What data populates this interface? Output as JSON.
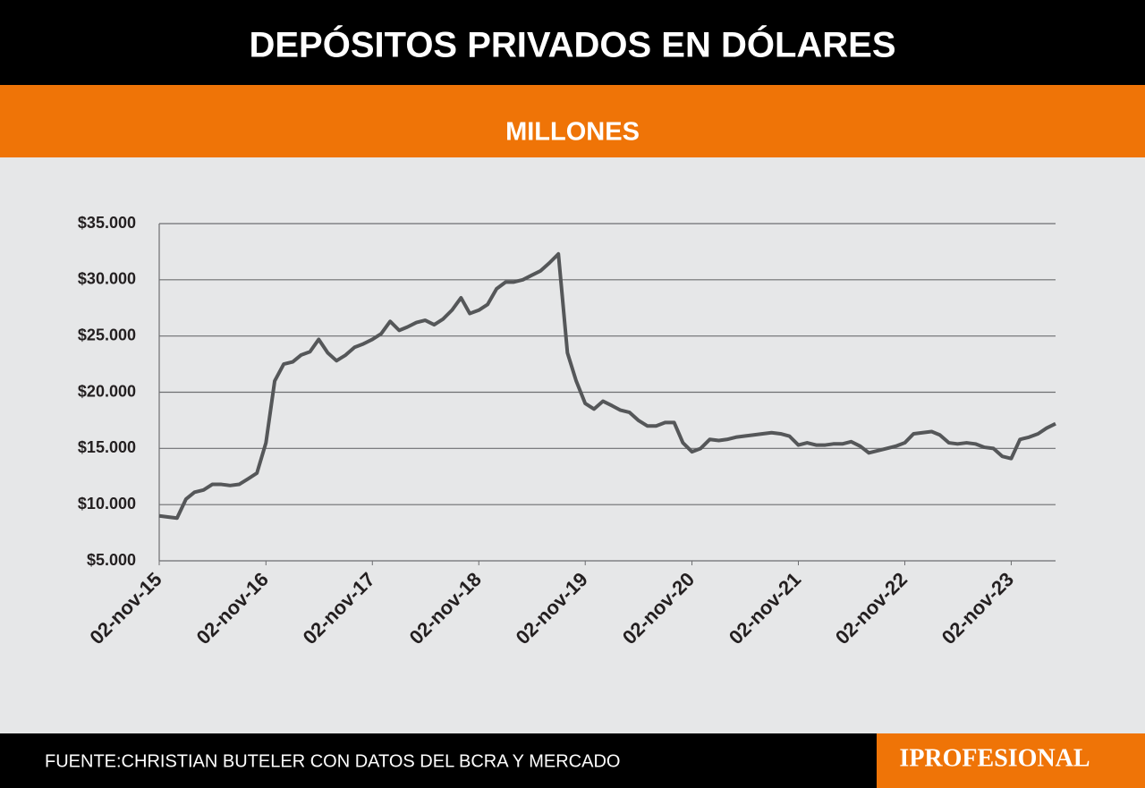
{
  "chart_data": {
    "type": "line",
    "title": "DEPÓSITOS PRIVADOS EN DÓLARES",
    "subtitle": "MILLONES",
    "source": "FUENTE:CHRISTIAN BUTELER CON DATOS DEL BCRA Y MERCADO",
    "brand": "IPROFESIONAL",
    "x": [
      "2015-11-02",
      "2015-12-02",
      "2016-01-02",
      "2016-02-02",
      "2016-03-02",
      "2016-04-02",
      "2016-05-02",
      "2016-06-02",
      "2016-07-02",
      "2016-08-02",
      "2016-09-02",
      "2016-10-02",
      "2016-11-02",
      "2016-12-02",
      "2017-01-02",
      "2017-02-02",
      "2017-03-02",
      "2017-04-02",
      "2017-05-02",
      "2017-06-02",
      "2017-07-02",
      "2017-08-02",
      "2017-09-02",
      "2017-10-02",
      "2017-11-02",
      "2017-12-02",
      "2018-01-02",
      "2018-02-02",
      "2018-03-02",
      "2018-04-02",
      "2018-05-02",
      "2018-06-02",
      "2018-07-02",
      "2018-08-02",
      "2018-09-02",
      "2018-10-02",
      "2018-11-02",
      "2018-12-02",
      "2019-01-02",
      "2019-02-02",
      "2019-03-02",
      "2019-04-02",
      "2019-05-02",
      "2019-06-02",
      "2019-07-02",
      "2019-08-02",
      "2019-09-02",
      "2019-10-02",
      "2019-11-02",
      "2019-12-02",
      "2020-01-02",
      "2020-02-02",
      "2020-03-02",
      "2020-04-02",
      "2020-05-02",
      "2020-06-02",
      "2020-07-02",
      "2020-08-02",
      "2020-09-02",
      "2020-10-02",
      "2020-11-02",
      "2020-12-02",
      "2021-01-02",
      "2021-02-02",
      "2021-03-02",
      "2021-04-02",
      "2021-05-02",
      "2021-06-02",
      "2021-07-02",
      "2021-08-02",
      "2021-09-02",
      "2021-10-02",
      "2021-11-02",
      "2021-12-02",
      "2022-01-02",
      "2022-02-02",
      "2022-03-02",
      "2022-04-02",
      "2022-05-02",
      "2022-06-02",
      "2022-07-02",
      "2022-08-02",
      "2022-09-02",
      "2022-10-02",
      "2022-11-02",
      "2022-12-02",
      "2023-01-02",
      "2023-02-02",
      "2023-03-02",
      "2023-04-02",
      "2023-05-02",
      "2023-06-02",
      "2023-07-02",
      "2023-08-02",
      "2023-09-02",
      "2023-10-02",
      "2023-11-02",
      "2023-12-02",
      "2024-01-02",
      "2024-02-02",
      "2024-03-02",
      "2024-04-02"
    ],
    "series": [
      {
        "name": "Depósitos",
        "color": "#555759",
        "values": [
          9000,
          8900,
          8800,
          10500,
          11100,
          11300,
          11800,
          11800,
          11700,
          11800,
          12300,
          12800,
          15500,
          21000,
          22500,
          22700,
          23300,
          23600,
          24700,
          23500,
          22800,
          23300,
          24000,
          24300,
          24700,
          25200,
          26300,
          25500,
          25800,
          26200,
          26400,
          26000,
          26500,
          27300,
          28400,
          27000,
          27300,
          27800,
          29200,
          29800,
          29800,
          30000,
          30400,
          30800,
          31500,
          32300,
          23500,
          21000,
          19000,
          18500,
          19200,
          18800,
          18400,
          18200,
          17500,
          17000,
          17000,
          17300,
          17300,
          15500,
          14700,
          15000,
          15800,
          15700,
          15800,
          16000,
          16100,
          16200,
          16300,
          16400,
          16300,
          16100,
          15300,
          15500,
          15300,
          15300,
          15400,
          15400,
          15600,
          15200,
          14600,
          14800,
          15000,
          15200,
          15500,
          16300,
          16400,
          16500,
          16200,
          15500,
          15400,
          15500,
          15400,
          15100,
          15000,
          14300,
          14100,
          15800,
          16000,
          16300,
          16800,
          17200
        ]
      }
    ],
    "xlim": [
      "2015-11-02",
      "2024-04-02"
    ],
    "xticks": [
      {
        "value": "2015-11-02",
        "label": "02-nov-15"
      },
      {
        "value": "2016-11-02",
        "label": "02-nov-16"
      },
      {
        "value": "2017-11-02",
        "label": "02-nov-17"
      },
      {
        "value": "2018-11-02",
        "label": "02-nov-18"
      },
      {
        "value": "2019-11-02",
        "label": "02-nov-19"
      },
      {
        "value": "2020-11-02",
        "label": "02-nov-20"
      },
      {
        "value": "2021-11-02",
        "label": "02-nov-21"
      },
      {
        "value": "2022-11-02",
        "label": "02-nov-22"
      },
      {
        "value": "2023-11-02",
        "label": "02-nov-23"
      }
    ],
    "ylim": [
      5000,
      35000
    ],
    "yticks": [
      {
        "value": 5000,
        "label": "$5.000"
      },
      {
        "value": 10000,
        "label": "$10.000"
      },
      {
        "value": 15000,
        "label": "$15.000"
      },
      {
        "value": 20000,
        "label": "$20.000"
      },
      {
        "value": 25000,
        "label": "$25.000"
      },
      {
        "value": 30000,
        "label": "$30.000"
      },
      {
        "value": 35000,
        "label": "$35.000"
      }
    ],
    "grid": true
  }
}
